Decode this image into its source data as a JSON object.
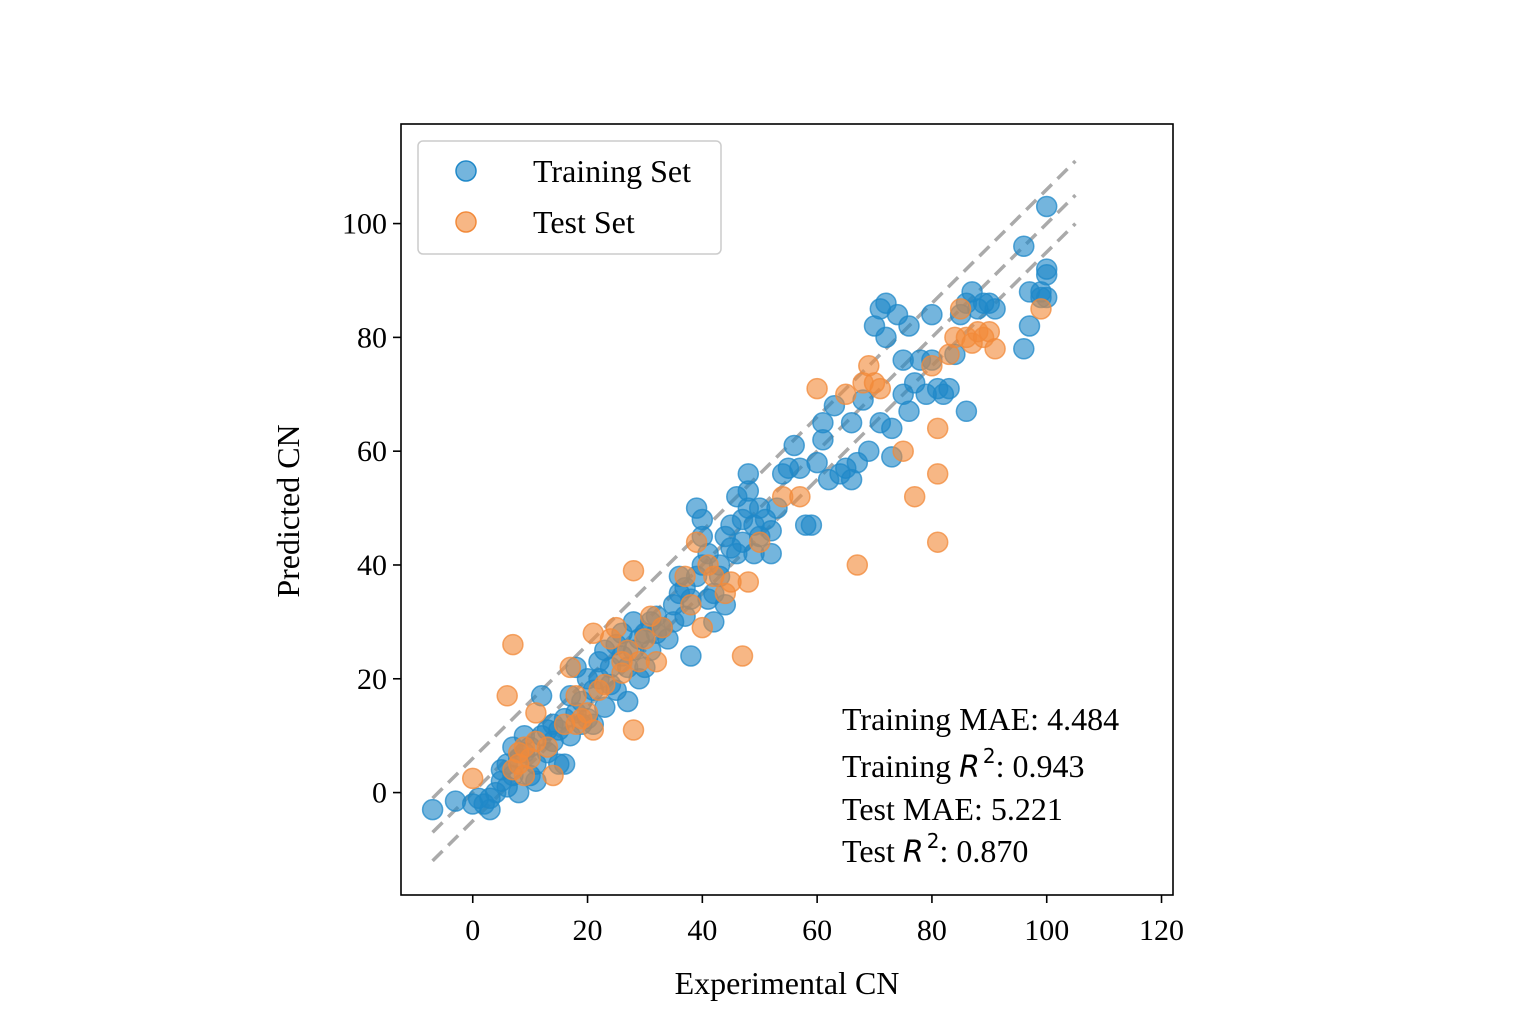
{
  "chart_data": {
    "type": "scatter",
    "xlabel": "Experimental CN",
    "ylabel": "Predicted CN",
    "xlim": [
      -12.5,
      122
    ],
    "ylim": [
      -18,
      117.5
    ],
    "xticks": [
      "0",
      "20",
      "40",
      "60",
      "80",
      "100",
      "120"
    ],
    "yticks": [
      "0",
      "20",
      "40",
      "60",
      "80",
      "100"
    ],
    "grid": false,
    "legend_position": "top-left",
    "reference_lines": [
      {
        "style": "dashed",
        "color": "#aaaaaa",
        "x": [
          -7,
          105
        ],
        "y": [
          -1,
          111
        ]
      },
      {
        "style": "dashed",
        "color": "#aaaaaa",
        "x": [
          -7,
          105
        ],
        "y": [
          -7,
          105
        ]
      },
      {
        "style": "dashed",
        "color": "#aaaaaa",
        "x": [
          -7,
          105
        ],
        "y": [
          -12,
          100
        ]
      }
    ],
    "annotations": {
      "train_mae": "Training MAE: 4.484",
      "train_r2_prefix": "Training ",
      "train_r2_value": ": 0.943",
      "test_mae": "Test MAE: 5.221",
      "test_r2_prefix": "Test ",
      "test_r2_value": ": 0.870",
      "r_symbol": "R",
      "r_exponent": "2"
    },
    "series": [
      {
        "name": "Training Set",
        "color": "#1f88c8",
        "points": [
          [
            -7,
            -3
          ],
          [
            -3,
            -1.5
          ],
          [
            0,
            -2
          ],
          [
            1,
            -1
          ],
          [
            2,
            -2
          ],
          [
            3,
            -3
          ],
          [
            3,
            -1
          ],
          [
            4,
            0
          ],
          [
            5,
            2
          ],
          [
            5,
            4
          ],
          [
            6,
            1
          ],
          [
            6,
            5
          ],
          [
            7,
            3
          ],
          [
            7,
            8
          ],
          [
            8,
            0
          ],
          [
            8,
            6
          ],
          [
            9,
            7
          ],
          [
            9,
            10
          ],
          [
            10,
            3
          ],
          [
            10,
            8
          ],
          [
            11,
            2
          ],
          [
            11,
            5
          ],
          [
            12,
            17
          ],
          [
            12,
            10
          ],
          [
            13,
            7
          ],
          [
            13,
            11
          ],
          [
            14,
            9
          ],
          [
            14,
            12
          ],
          [
            15,
            5
          ],
          [
            15,
            11
          ],
          [
            16,
            5
          ],
          [
            16,
            13
          ],
          [
            17,
            17
          ],
          [
            17,
            10
          ],
          [
            18,
            22
          ],
          [
            18,
            14
          ],
          [
            19,
            16
          ],
          [
            19,
            12
          ],
          [
            20,
            20
          ],
          [
            20,
            13
          ],
          [
            21,
            18
          ],
          [
            21,
            12
          ],
          [
            22,
            20
          ],
          [
            22,
            23
          ],
          [
            23,
            15
          ],
          [
            23,
            25
          ],
          [
            24,
            19
          ],
          [
            24,
            22
          ],
          [
            25,
            18
          ],
          [
            25,
            26
          ],
          [
            26,
            24
          ],
          [
            26,
            28
          ],
          [
            27,
            22
          ],
          [
            27,
            16
          ],
          [
            28,
            25
          ],
          [
            28,
            30
          ],
          [
            29,
            20
          ],
          [
            29,
            27
          ],
          [
            30,
            22
          ],
          [
            30,
            28
          ],
          [
            31,
            30
          ],
          [
            31,
            25
          ],
          [
            32,
            28
          ],
          [
            32,
            31
          ],
          [
            33,
            29
          ],
          [
            34,
            27
          ],
          [
            35,
            30
          ],
          [
            35,
            33
          ],
          [
            36,
            35
          ],
          [
            36,
            38
          ],
          [
            37,
            31
          ],
          [
            37,
            36
          ],
          [
            38,
            24
          ],
          [
            38,
            34
          ],
          [
            39,
            38
          ],
          [
            39,
            50
          ],
          [
            40,
            40
          ],
          [
            40,
            45
          ],
          [
            40,
            48
          ],
          [
            41,
            34
          ],
          [
            41,
            42
          ],
          [
            42,
            35
          ],
          [
            42,
            30
          ],
          [
            43,
            38
          ],
          [
            43,
            40
          ],
          [
            44,
            33
          ],
          [
            44,
            45
          ],
          [
            45,
            43
          ],
          [
            45,
            47
          ],
          [
            46,
            52
          ],
          [
            46,
            42
          ],
          [
            47,
            44
          ],
          [
            47,
            48
          ],
          [
            48,
            50
          ],
          [
            48,
            53
          ],
          [
            48,
            56
          ],
          [
            49,
            47
          ],
          [
            49,
            42
          ],
          [
            50,
            45
          ],
          [
            50,
            50
          ],
          [
            51,
            48
          ],
          [
            52,
            42
          ],
          [
            52,
            46
          ],
          [
            53,
            50
          ],
          [
            54,
            56
          ],
          [
            55,
            57
          ],
          [
            56,
            61
          ],
          [
            57,
            57
          ],
          [
            58,
            47
          ],
          [
            59,
            47
          ],
          [
            60,
            58
          ],
          [
            61,
            62
          ],
          [
            61,
            65
          ],
          [
            62,
            55
          ],
          [
            63,
            68
          ],
          [
            64,
            56
          ],
          [
            65,
            57
          ],
          [
            66,
            55
          ],
          [
            66,
            65
          ],
          [
            67,
            58
          ],
          [
            68,
            69
          ],
          [
            69,
            60
          ],
          [
            70,
            82
          ],
          [
            71,
            85
          ],
          [
            71,
            65
          ],
          [
            72,
            86
          ],
          [
            72,
            80
          ],
          [
            73,
            64
          ],
          [
            73,
            59
          ],
          [
            74,
            84
          ],
          [
            75,
            76
          ],
          [
            75,
            70
          ],
          [
            76,
            82
          ],
          [
            76,
            67
          ],
          [
            77,
            72
          ],
          [
            78,
            76
          ],
          [
            79,
            70
          ],
          [
            80,
            76
          ],
          [
            80,
            84
          ],
          [
            81,
            71
          ],
          [
            82,
            70
          ],
          [
            83,
            71
          ],
          [
            84,
            77
          ],
          [
            85,
            84
          ],
          [
            86,
            86
          ],
          [
            86,
            67
          ],
          [
            87,
            88
          ],
          [
            88,
            85
          ],
          [
            89,
            86
          ],
          [
            90,
            86
          ],
          [
            91,
            85
          ],
          [
            96,
            96
          ],
          [
            96,
            78
          ],
          [
            97,
            88
          ],
          [
            97,
            82
          ],
          [
            99,
            88
          ],
          [
            99,
            87
          ],
          [
            100,
            103
          ],
          [
            100,
            92
          ],
          [
            100,
            91
          ],
          [
            100,
            87
          ]
        ]
      },
      {
        "name": "Test Set",
        "color": "#f28a3a",
        "points": [
          [
            0,
            2.5
          ],
          [
            6,
            17
          ],
          [
            7,
            26
          ],
          [
            7,
            4
          ],
          [
            8,
            7
          ],
          [
            8,
            5
          ],
          [
            9,
            3
          ],
          [
            9,
            8
          ],
          [
            10,
            6
          ],
          [
            11,
            14
          ],
          [
            11,
            9
          ],
          [
            13,
            8
          ],
          [
            14,
            3
          ],
          [
            16,
            12
          ],
          [
            17,
            22
          ],
          [
            18,
            17
          ],
          [
            18,
            12
          ],
          [
            19,
            13
          ],
          [
            20,
            14
          ],
          [
            21,
            11
          ],
          [
            21,
            28
          ],
          [
            22,
            18
          ],
          [
            23,
            19
          ],
          [
            24,
            27
          ],
          [
            25,
            29
          ],
          [
            26,
            21
          ],
          [
            26,
            23
          ],
          [
            27,
            25
          ],
          [
            28,
            39
          ],
          [
            28,
            11
          ],
          [
            29,
            23
          ],
          [
            30,
            27
          ],
          [
            31,
            31
          ],
          [
            32,
            23
          ],
          [
            33,
            29
          ],
          [
            37,
            38
          ],
          [
            38,
            33
          ],
          [
            39,
            44
          ],
          [
            40,
            29
          ],
          [
            41,
            40
          ],
          [
            42,
            38
          ],
          [
            44,
            35
          ],
          [
            45,
            37
          ],
          [
            47,
            24
          ],
          [
            48,
            37
          ],
          [
            50,
            44
          ],
          [
            54,
            52
          ],
          [
            57,
            52
          ],
          [
            60,
            71
          ],
          [
            65,
            70
          ],
          [
            67,
            40
          ],
          [
            68,
            72
          ],
          [
            69,
            75
          ],
          [
            70,
            72
          ],
          [
            71,
            71
          ],
          [
            75,
            60
          ],
          [
            77,
            52
          ],
          [
            80,
            75
          ],
          [
            81,
            64
          ],
          [
            81,
            56
          ],
          [
            81,
            44
          ],
          [
            83,
            77
          ],
          [
            84,
            80
          ],
          [
            85,
            85
          ],
          [
            86,
            80
          ],
          [
            87,
            79
          ],
          [
            88,
            81
          ],
          [
            89,
            80
          ],
          [
            90,
            81
          ],
          [
            91,
            78
          ],
          [
            99,
            85
          ]
        ]
      }
    ]
  }
}
